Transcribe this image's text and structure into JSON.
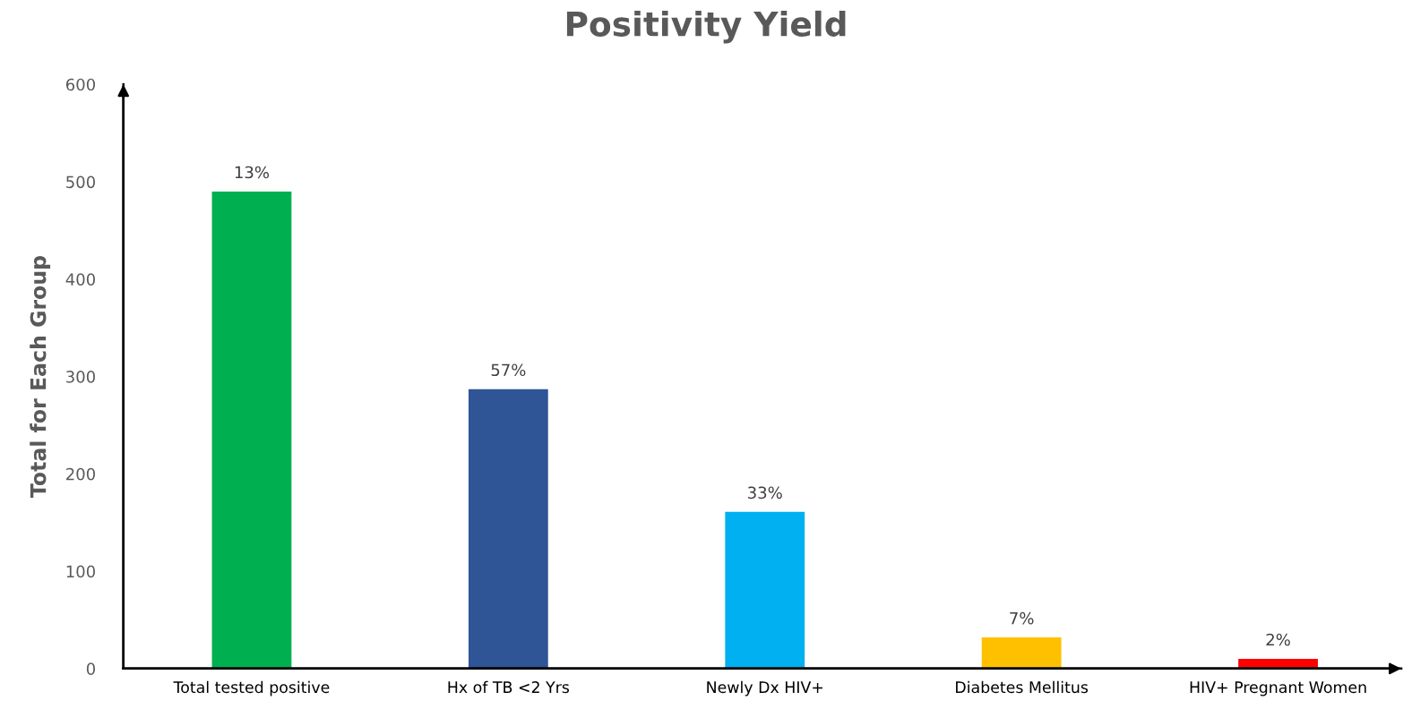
{
  "chart_data": {
    "type": "bar",
    "title": "Positivity Yield",
    "ylabel": "Total for Each Group",
    "categories": [
      "Total tested positive",
      "Hx of TB <2 Yrs",
      "Newly Dx HIV+",
      "Diabetes Mellitus",
      "HIV+ Pregnant Women"
    ],
    "values": [
      490,
      287,
      161,
      32,
      10
    ],
    "colors": [
      "#00b050",
      "#2f5597",
      "#00b0f0",
      "#ffc000",
      "#ff0000"
    ],
    "annotations": [
      {
        "text": "13%",
        "x": "Total tested positive",
        "y": 490
      },
      {
        "text": "57%",
        "x": "Hx of TB <2 Yrs",
        "y": 287
      },
      {
        "text": "33%",
        "x": "Newly Dx HIV+",
        "y": 161
      },
      {
        "text": "7%",
        "x": "Diabetes Mellitus",
        "y": 32
      },
      {
        "text": "2%",
        "x": "HIV+ Pregnant Women",
        "y": 10
      }
    ],
    "ylim": [
      0,
      600
    ],
    "yticks": [
      0,
      100,
      200,
      300,
      400,
      500,
      600
    ],
    "grid": false,
    "legend": false
  }
}
